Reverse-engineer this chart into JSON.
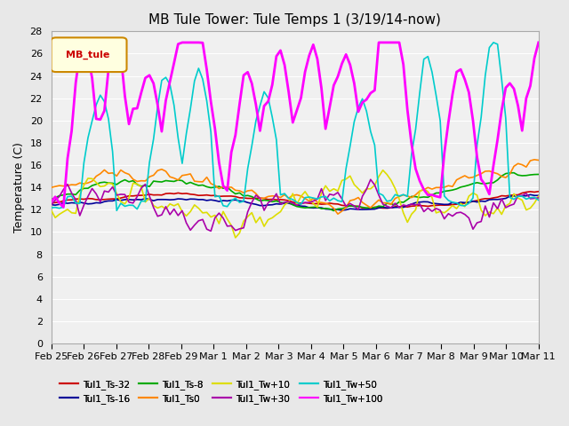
{
  "title": "MB Tule Tower: Tule Temps 1 (3/19/14-now)",
  "ylabel": "Temperature (C)",
  "ylim": [
    0,
    28
  ],
  "yticks": [
    0,
    2,
    4,
    6,
    8,
    10,
    12,
    14,
    16,
    18,
    20,
    22,
    24,
    26,
    28
  ],
  "xlabels": [
    "Feb 25",
    "Feb 26",
    "Feb 27",
    "Feb 28",
    "Feb 29",
    "Mar 1",
    "Mar 2",
    "Mar 3",
    "Mar 4",
    "Mar 5",
    "Mar 6",
    "Mar 7",
    "Mar 8",
    "Mar 9",
    "Mar 10",
    "Mar 11"
  ],
  "legend_title": "MB_tule",
  "series": [
    {
      "label": "Tul1_Ts-32",
      "color": "#cc0000",
      "lw": 1.2
    },
    {
      "label": "Tul1_Ts-16",
      "color": "#000099",
      "lw": 1.2
    },
    {
      "label": "Tul1_Ts-8",
      "color": "#00aa00",
      "lw": 1.2
    },
    {
      "label": "Tul1_Ts0",
      "color": "#ff8800",
      "lw": 1.2
    },
    {
      "label": "Tul1_Tw+10",
      "color": "#dddd00",
      "lw": 1.2
    },
    {
      "label": "Tul1_Tw+30",
      "color": "#aa00aa",
      "lw": 1.2
    },
    {
      "label": "Tul1_Tw+50",
      "color": "#00cccc",
      "lw": 1.2
    },
    {
      "label": "Tul1_Tw+100",
      "color": "#ff00ff",
      "lw": 2.0
    }
  ],
  "bg_color": "#e8e8e8",
  "plot_bg": "#f0f0f0",
  "grid_color": "#ffffff",
  "title_fontsize": 11,
  "axis_fontsize": 9,
  "tick_fontsize": 8
}
